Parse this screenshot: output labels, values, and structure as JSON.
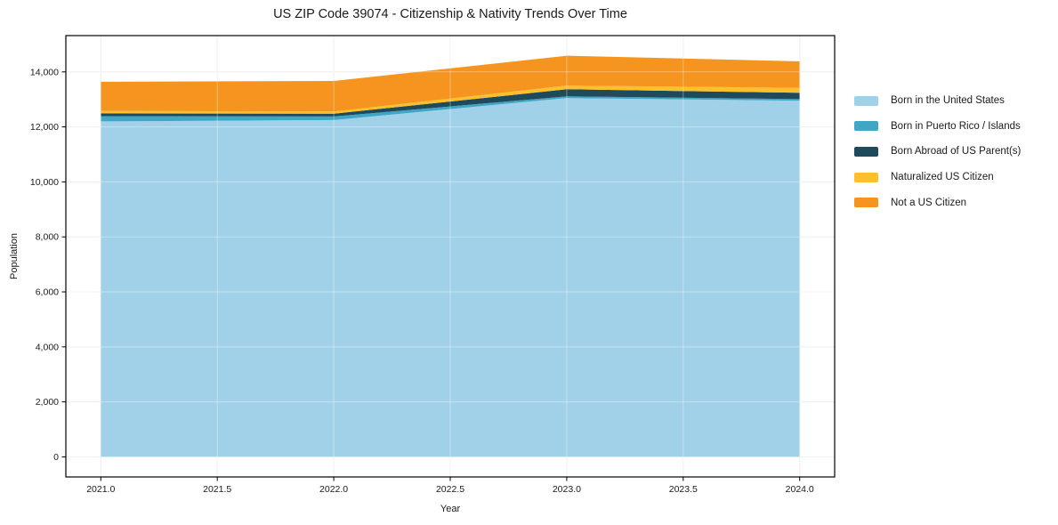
{
  "chart_data": {
    "type": "area",
    "stacked": true,
    "title": "US ZIP Code 39074 - Citizenship & Nativity Trends Over Time",
    "xlabel": "Year",
    "ylabel": "Population",
    "x": [
      2021,
      2022,
      2023,
      2024
    ],
    "series": [
      {
        "name": "Born in the United States",
        "color": "#A1D1E8",
        "values": [
          12200,
          12250,
          13050,
          12950
        ]
      },
      {
        "name": "Born in Puerto Rico / Islands",
        "color": "#3FA6C6",
        "values": [
          190,
          130,
          60,
          60
        ]
      },
      {
        "name": "Born Abroad of US Parent(s)",
        "color": "#1E4A5C",
        "values": [
          100,
          100,
          260,
          230
        ]
      },
      {
        "name": "Naturalized US Citizen",
        "color": "#FBC02C",
        "values": [
          90,
          80,
          130,
          180
        ]
      },
      {
        "name": "Not a US Citizen",
        "color": "#F5941F",
        "values": [
          1060,
          1110,
          1090,
          960
        ]
      }
    ],
    "totals": [
      13640,
      13670,
      14590,
      14380
    ],
    "xlim": [
      2020.85,
      2024.15
    ],
    "ylim": [
      -730,
      15320
    ],
    "xticks": [
      2021.0,
      2021.5,
      2022.0,
      2022.5,
      2023.0,
      2023.5,
      2024.0
    ],
    "xtick_labels": [
      "2021.0",
      "2021.5",
      "2022.0",
      "2022.5",
      "2023.0",
      "2023.5",
      "2024.0"
    ],
    "yticks": [
      0,
      2000,
      4000,
      6000,
      8000,
      10000,
      12000,
      14000
    ],
    "ytick_labels": [
      "0",
      "2,000",
      "4,000",
      "6,000",
      "8,000",
      "10,000",
      "12,000",
      "14,000"
    ],
    "grid": true,
    "legend_position": "right-outside",
    "colors": {
      "spine": "#000000",
      "grid_under": "#e8e8e8",
      "grid_over": "rgba(255,255,255,0.35)",
      "tick_text": "#1a1a1a",
      "background": "#ffffff"
    }
  }
}
